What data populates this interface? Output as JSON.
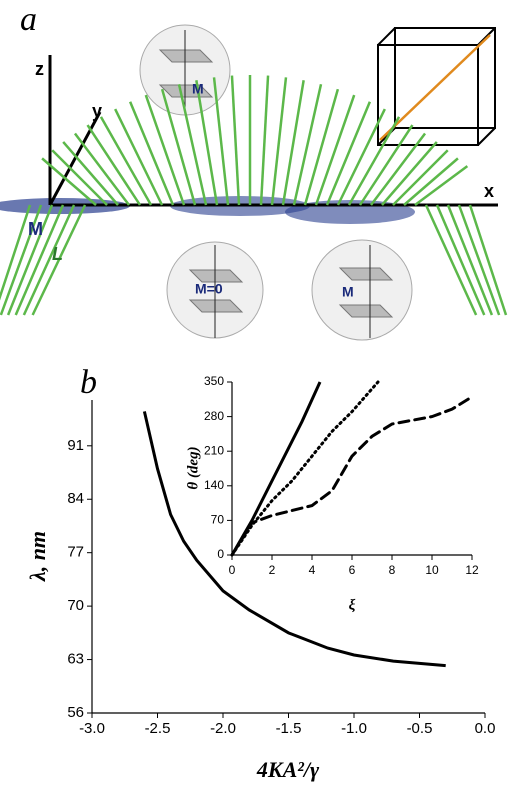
{
  "panel_a": {
    "label": "a",
    "axis_z": "z",
    "axis_y": "y",
    "axis_x": "x",
    "vector_m": "M",
    "vector_l": "L",
    "circle_top": "M",
    "circle_mid": "M=0",
    "circle_right": "M"
  },
  "chart_data": [
    {
      "type": "line",
      "panel": "b",
      "xlabel": "4KA²/γ",
      "ylabel": "λ, nm",
      "x": [
        -2.6,
        -2.5,
        -2.4,
        -2.3,
        -2.2,
        -2.0,
        -1.8,
        -1.5,
        -1.2,
        -1.0,
        -0.7,
        -0.3
      ],
      "values": [
        95.5,
        88,
        82,
        78.5,
        76,
        72,
        69.5,
        66.5,
        64.5,
        63.6,
        62.8,
        62.2
      ],
      "color": "#000000",
      "xlim": [
        -3,
        0
      ],
      "xticks": [
        {
          "value": -3,
          "label": "-3.0"
        },
        -2.5,
        {
          "value": -2,
          "label": "-2.0"
        },
        -1.5,
        {
          "value": -1,
          "label": "-1.0"
        },
        -0.5,
        {
          "value": 0,
          "label": "0.0"
        }
      ],
      "ylim": [
        56,
        97
      ],
      "yticks": [
        56,
        63,
        70,
        77,
        84,
        91
      ]
    },
    {
      "type": "line",
      "xlabel": "ξ",
      "ylabel": "θ (deg)",
      "series": [
        {
          "color": "#000000",
          "dash": "solid",
          "x": [
            0,
            1,
            2,
            3,
            3.5,
            4.4
          ],
          "values": [
            0,
            70,
            150,
            230,
            270,
            350
          ]
        },
        {
          "color": "#000000",
          "dash": "dotted",
          "x": [
            0,
            1,
            2,
            3,
            4,
            5,
            6,
            7.3
          ],
          "values": [
            0,
            60,
            110,
            150,
            200,
            250,
            290,
            350
          ]
        },
        {
          "color": "#000000",
          "dash": "dashed",
          "x": [
            0,
            1,
            2,
            3,
            4,
            5,
            6,
            7,
            8,
            10,
            11,
            12
          ],
          "values": [
            0,
            65,
            80,
            90,
            100,
            130,
            200,
            240,
            265,
            280,
            295,
            320
          ]
        }
      ],
      "xlim": [
        0,
        12
      ],
      "xticks": [
        0,
        2,
        4,
        6,
        8,
        10,
        12
      ],
      "ylim": [
        0,
        350
      ],
      "yticks": [
        0,
        70,
        140,
        210,
        280,
        350
      ]
    }
  ]
}
